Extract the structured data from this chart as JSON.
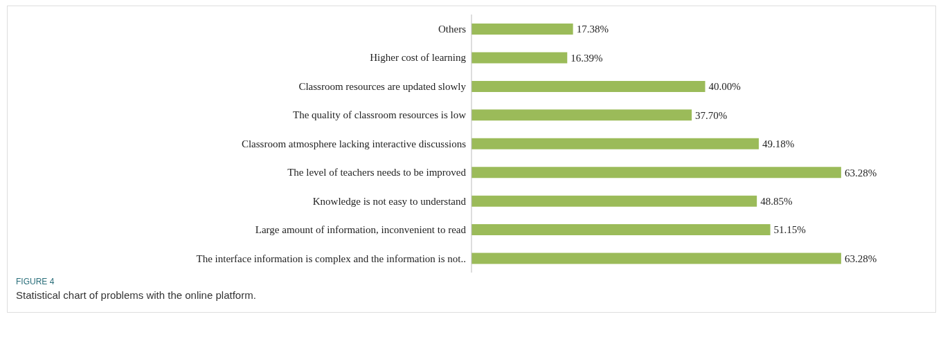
{
  "chart_data": {
    "type": "bar",
    "orientation": "horizontal",
    "categories": [
      "Others",
      "Higher cost of learning",
      "Classroom resources are updated slowly",
      "The quality of classroom resources is low",
      "Classroom atmosphere lacking interactive discussions",
      "The level of teachers needs to be improved",
      "Knowledge is not easy to understand",
      "Large amount of information, inconvenient to read",
      "The interface information is complex and the information is not.."
    ],
    "values": [
      17.38,
      16.39,
      40.0,
      37.7,
      49.18,
      63.28,
      48.85,
      51.15,
      63.28
    ],
    "value_labels": [
      "17.38%",
      "16.39%",
      "40.00%",
      "37.70%",
      "49.18%",
      "63.28%",
      "48.85%",
      "51.15%",
      "63.28%"
    ],
    "color": "#9bbb59",
    "annotations": [
      "FIGURE 4",
      "Statistical chart of problems with the online platform."
    ]
  }
}
